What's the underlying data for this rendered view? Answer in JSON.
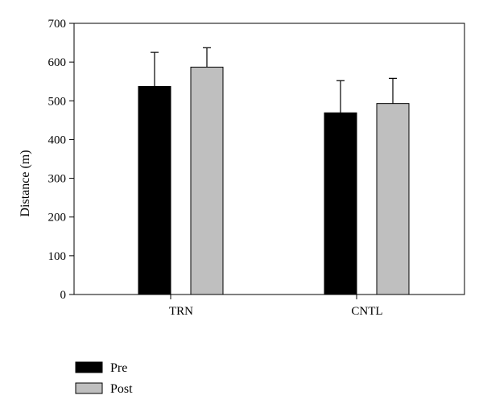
{
  "chart_data": {
    "type": "bar",
    "ylabel": "Distance (m)",
    "ylim": [
      0,
      700
    ],
    "yticks": [
      0,
      100,
      200,
      300,
      400,
      500,
      600,
      700
    ],
    "categories": [
      "TRN",
      "CNTL"
    ],
    "series": [
      {
        "name": "Pre",
        "values": [
          537,
          469
        ],
        "errors": [
          88,
          83
        ],
        "color": "#000000"
      },
      {
        "name": "Post",
        "values": [
          587,
          493
        ],
        "errors": [
          50,
          65
        ],
        "color": "#bfbfbf"
      }
    ],
    "grid": false,
    "error_bars": "upper",
    "legend_position": "bottom-left"
  }
}
